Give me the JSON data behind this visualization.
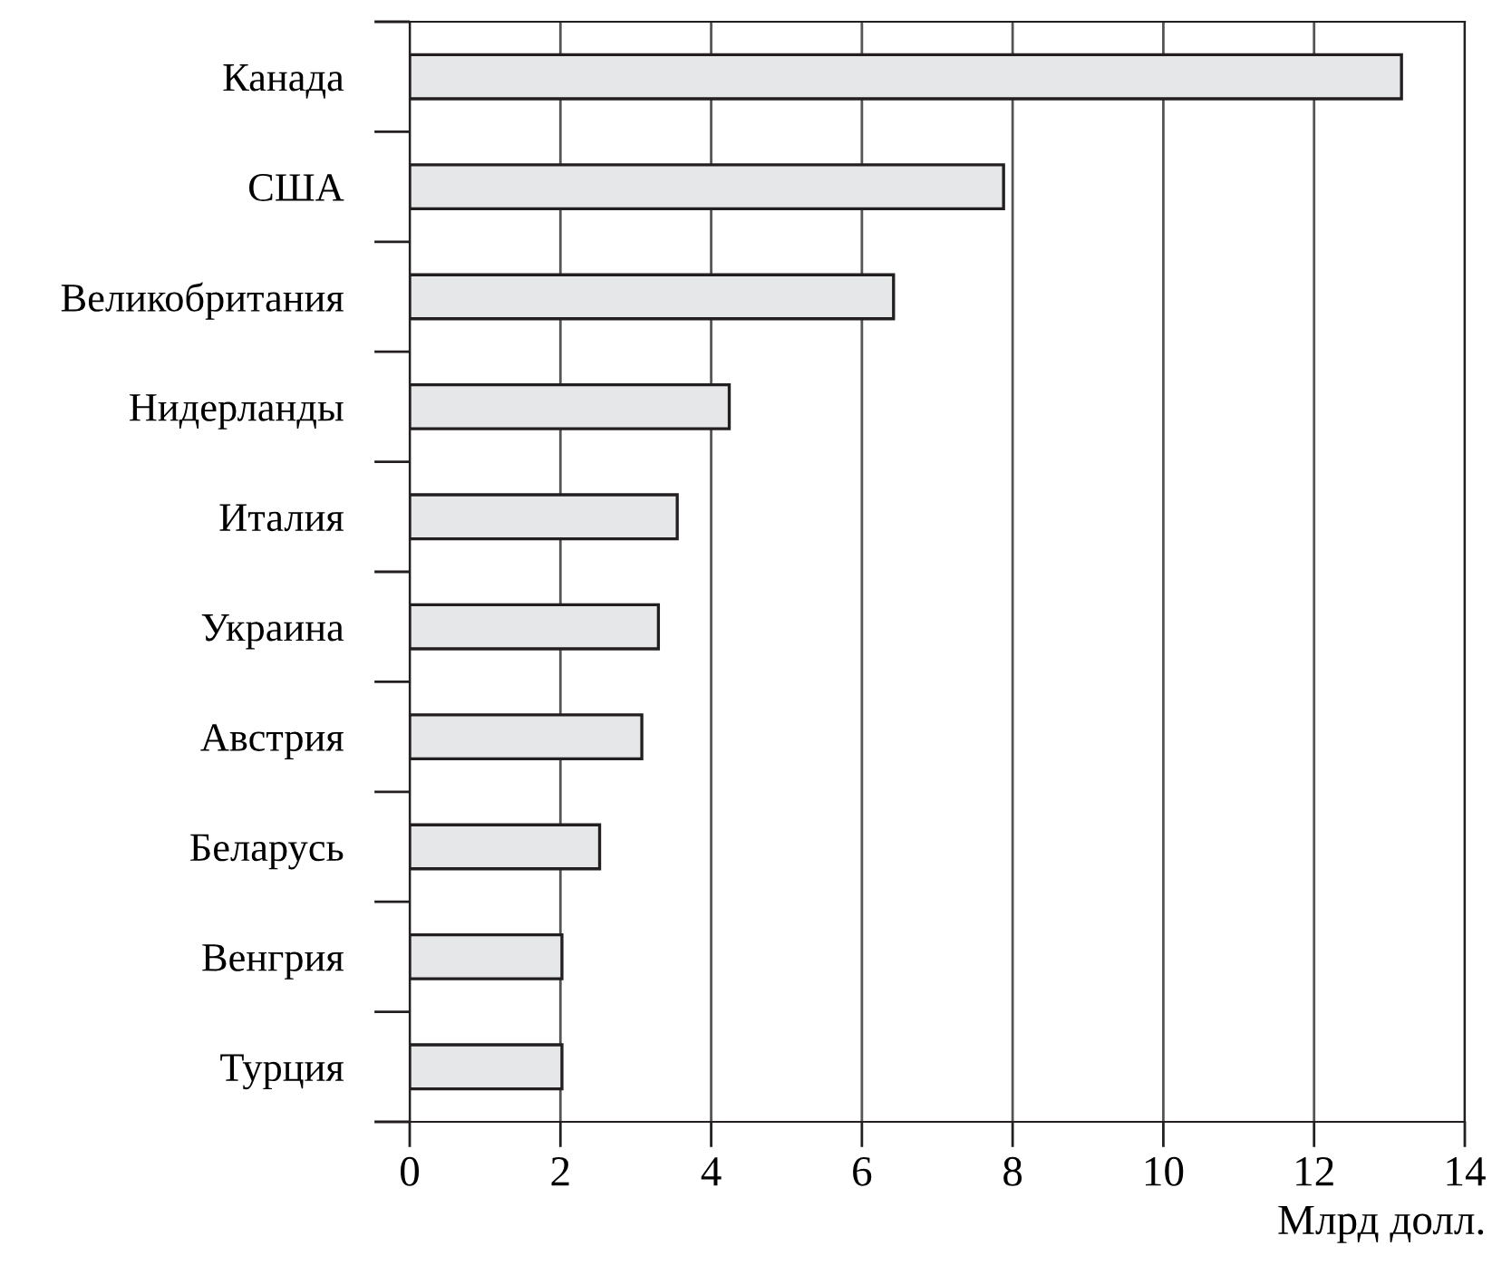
{
  "chart_data": {
    "type": "bar",
    "orientation": "horizontal",
    "xlabel": "Млрд долл.",
    "categories": [
      "Канада",
      "США",
      "Великобритания",
      "Нидерланды",
      "Италия",
      "Украина",
      "Австрия",
      "Беларусь",
      "Венгрия",
      "Турция"
    ],
    "values": [
      13.16,
      7.88,
      6.42,
      4.24,
      3.55,
      3.3,
      3.08,
      2.52,
      2.02,
      2.02
    ],
    "color": "#e6e7e8",
    "xlim": [
      0,
      14
    ],
    "xticks": [
      0,
      2,
      4,
      6,
      8,
      10,
      12,
      14
    ],
    "grid": "x"
  }
}
